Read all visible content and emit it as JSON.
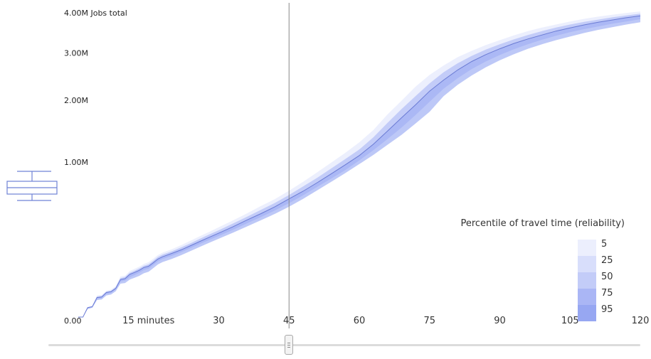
{
  "chart_data": {
    "type": "area",
    "x": [
      0,
      1,
      2,
      3,
      4,
      5,
      6,
      7,
      8,
      9,
      10,
      11,
      12,
      13,
      14,
      15,
      16,
      17,
      18,
      20,
      22,
      24,
      26,
      28,
      30,
      33,
      36,
      39,
      42,
      45,
      48,
      51,
      54,
      57,
      60,
      63,
      66,
      69,
      72,
      75,
      78,
      81,
      84,
      87,
      90,
      93,
      96,
      99,
      102,
      105,
      108,
      111,
      114,
      117,
      120
    ],
    "series": [
      {
        "name": "5",
        "values": [
          0,
          0,
          0.004,
          0.005,
          0.021,
          0.022,
          0.031,
          0.034,
          0.043,
          0.074,
          0.077,
          0.095,
          0.104,
          0.114,
          0.127,
          0.135,
          0.152,
          0.173,
          0.186,
          0.207,
          0.232,
          0.262,
          0.294,
          0.326,
          0.362,
          0.419,
          0.482,
          0.553,
          0.625,
          0.717,
          0.82,
          0.94,
          1.07,
          1.21,
          1.37,
          1.57,
          1.84,
          2.1,
          2.38,
          2.63,
          2.84,
          3.03,
          3.18,
          3.32,
          3.44,
          3.56,
          3.67,
          3.76,
          3.84,
          3.92,
          3.99,
          4.05,
          4.1,
          4.15,
          4.19
        ]
      },
      {
        "name": "25",
        "values": [
          0,
          0,
          0.004,
          0.005,
          0.019,
          0.02,
          0.029,
          0.031,
          0.04,
          0.068,
          0.072,
          0.088,
          0.096,
          0.106,
          0.118,
          0.125,
          0.142,
          0.162,
          0.175,
          0.194,
          0.218,
          0.245,
          0.276,
          0.306,
          0.338,
          0.392,
          0.451,
          0.516,
          0.585,
          0.669,
          0.765,
          0.87,
          0.99,
          1.12,
          1.26,
          1.45,
          1.69,
          1.94,
          2.19,
          2.45,
          2.69,
          2.89,
          3.06,
          3.21,
          3.34,
          3.46,
          3.57,
          3.67,
          3.76,
          3.84,
          3.91,
          3.97,
          4.03,
          4.08,
          4.13
        ]
      },
      {
        "name": "50",
        "values": [
          0,
          0,
          0.004,
          0.005,
          0.017,
          0.018,
          0.027,
          0.029,
          0.037,
          0.063,
          0.066,
          0.082,
          0.089,
          0.098,
          0.11,
          0.116,
          0.132,
          0.151,
          0.163,
          0.182,
          0.203,
          0.229,
          0.257,
          0.286,
          0.316,
          0.365,
          0.422,
          0.48,
          0.546,
          0.627,
          0.71,
          0.81,
          0.92,
          1.04,
          1.17,
          1.34,
          1.55,
          1.78,
          2.02,
          2.29,
          2.52,
          2.74,
          2.93,
          3.09,
          3.23,
          3.36,
          3.47,
          3.57,
          3.67,
          3.75,
          3.83,
          3.9,
          3.96,
          4.02,
          4.07
        ]
      },
      {
        "name": "75",
        "values": [
          0,
          0,
          0.003,
          0.004,
          0.015,
          0.016,
          0.024,
          0.026,
          0.034,
          0.057,
          0.06,
          0.071,
          0.079,
          0.088,
          0.099,
          0.105,
          0.121,
          0.139,
          0.151,
          0.168,
          0.189,
          0.214,
          0.24,
          0.267,
          0.295,
          0.341,
          0.393,
          0.449,
          0.51,
          0.582,
          0.665,
          0.76,
          0.86,
          0.97,
          1.1,
          1.25,
          1.42,
          1.61,
          1.83,
          2.08,
          2.34,
          2.56,
          2.76,
          2.93,
          3.08,
          3.22,
          3.34,
          3.45,
          3.55,
          3.64,
          3.72,
          3.79,
          3.86,
          3.92,
          3.98
        ]
      },
      {
        "name": "95",
        "values": [
          0,
          0,
          0.003,
          0.004,
          0.013,
          0.014,
          0.021,
          0.023,
          0.03,
          0.05,
          0.052,
          0.063,
          0.069,
          0.076,
          0.086,
          0.092,
          0.107,
          0.124,
          0.136,
          0.152,
          0.172,
          0.196,
          0.222,
          0.248,
          0.276,
          0.319,
          0.368,
          0.421,
          0.478,
          0.546,
          0.626,
          0.72,
          0.82,
          0.93,
          1.05,
          1.18,
          1.33,
          1.49,
          1.68,
          1.89,
          2.19,
          2.42,
          2.62,
          2.8,
          2.96,
          3.1,
          3.23,
          3.34,
          3.44,
          3.53,
          3.62,
          3.7,
          3.77,
          3.84,
          3.9
        ]
      }
    ],
    "median_series": "50",
    "value_unit": "millions of jobs",
    "ylim": [
      0,
      4.35
    ],
    "y_scale": "sqrt",
    "xlim": [
      0,
      120
    ],
    "y_ticks": [
      {
        "value": 0,
        "label": "0.00"
      },
      {
        "value": 1,
        "label": "1.00M"
      },
      {
        "value": 2,
        "label": "2.00M"
      },
      {
        "value": 3,
        "label": "3.00M"
      },
      {
        "value": 4,
        "label": "4.00M Jobs total"
      }
    ],
    "x_ticks": [
      {
        "value": 15,
        "label": "15 minutes"
      },
      {
        "value": 30,
        "label": "30"
      },
      {
        "value": 45,
        "label": "45"
      },
      {
        "value": 60,
        "label": "60"
      },
      {
        "value": 75,
        "label": "75"
      },
      {
        "value": 90,
        "label": "90"
      },
      {
        "value": 105,
        "label": "105"
      },
      {
        "value": 120,
        "label": "120"
      }
    ],
    "cursor_x": 45,
    "legend": {
      "title": "Percentile of travel time (reliability)",
      "entries": [
        "5",
        "25",
        "50",
        "75",
        "95"
      ],
      "position": "bottom-right"
    },
    "band_colors": [
      "#eceffd",
      "#d8defb",
      "#c3ccf8",
      "#aab6f5",
      "#97a7f2"
    ],
    "line_color": "#6a7bd4",
    "cursor_color": "#888888",
    "boxplot_icon_color": "#6f82d6",
    "grid": false
  },
  "slider": {
    "value_minutes": 45
  }
}
